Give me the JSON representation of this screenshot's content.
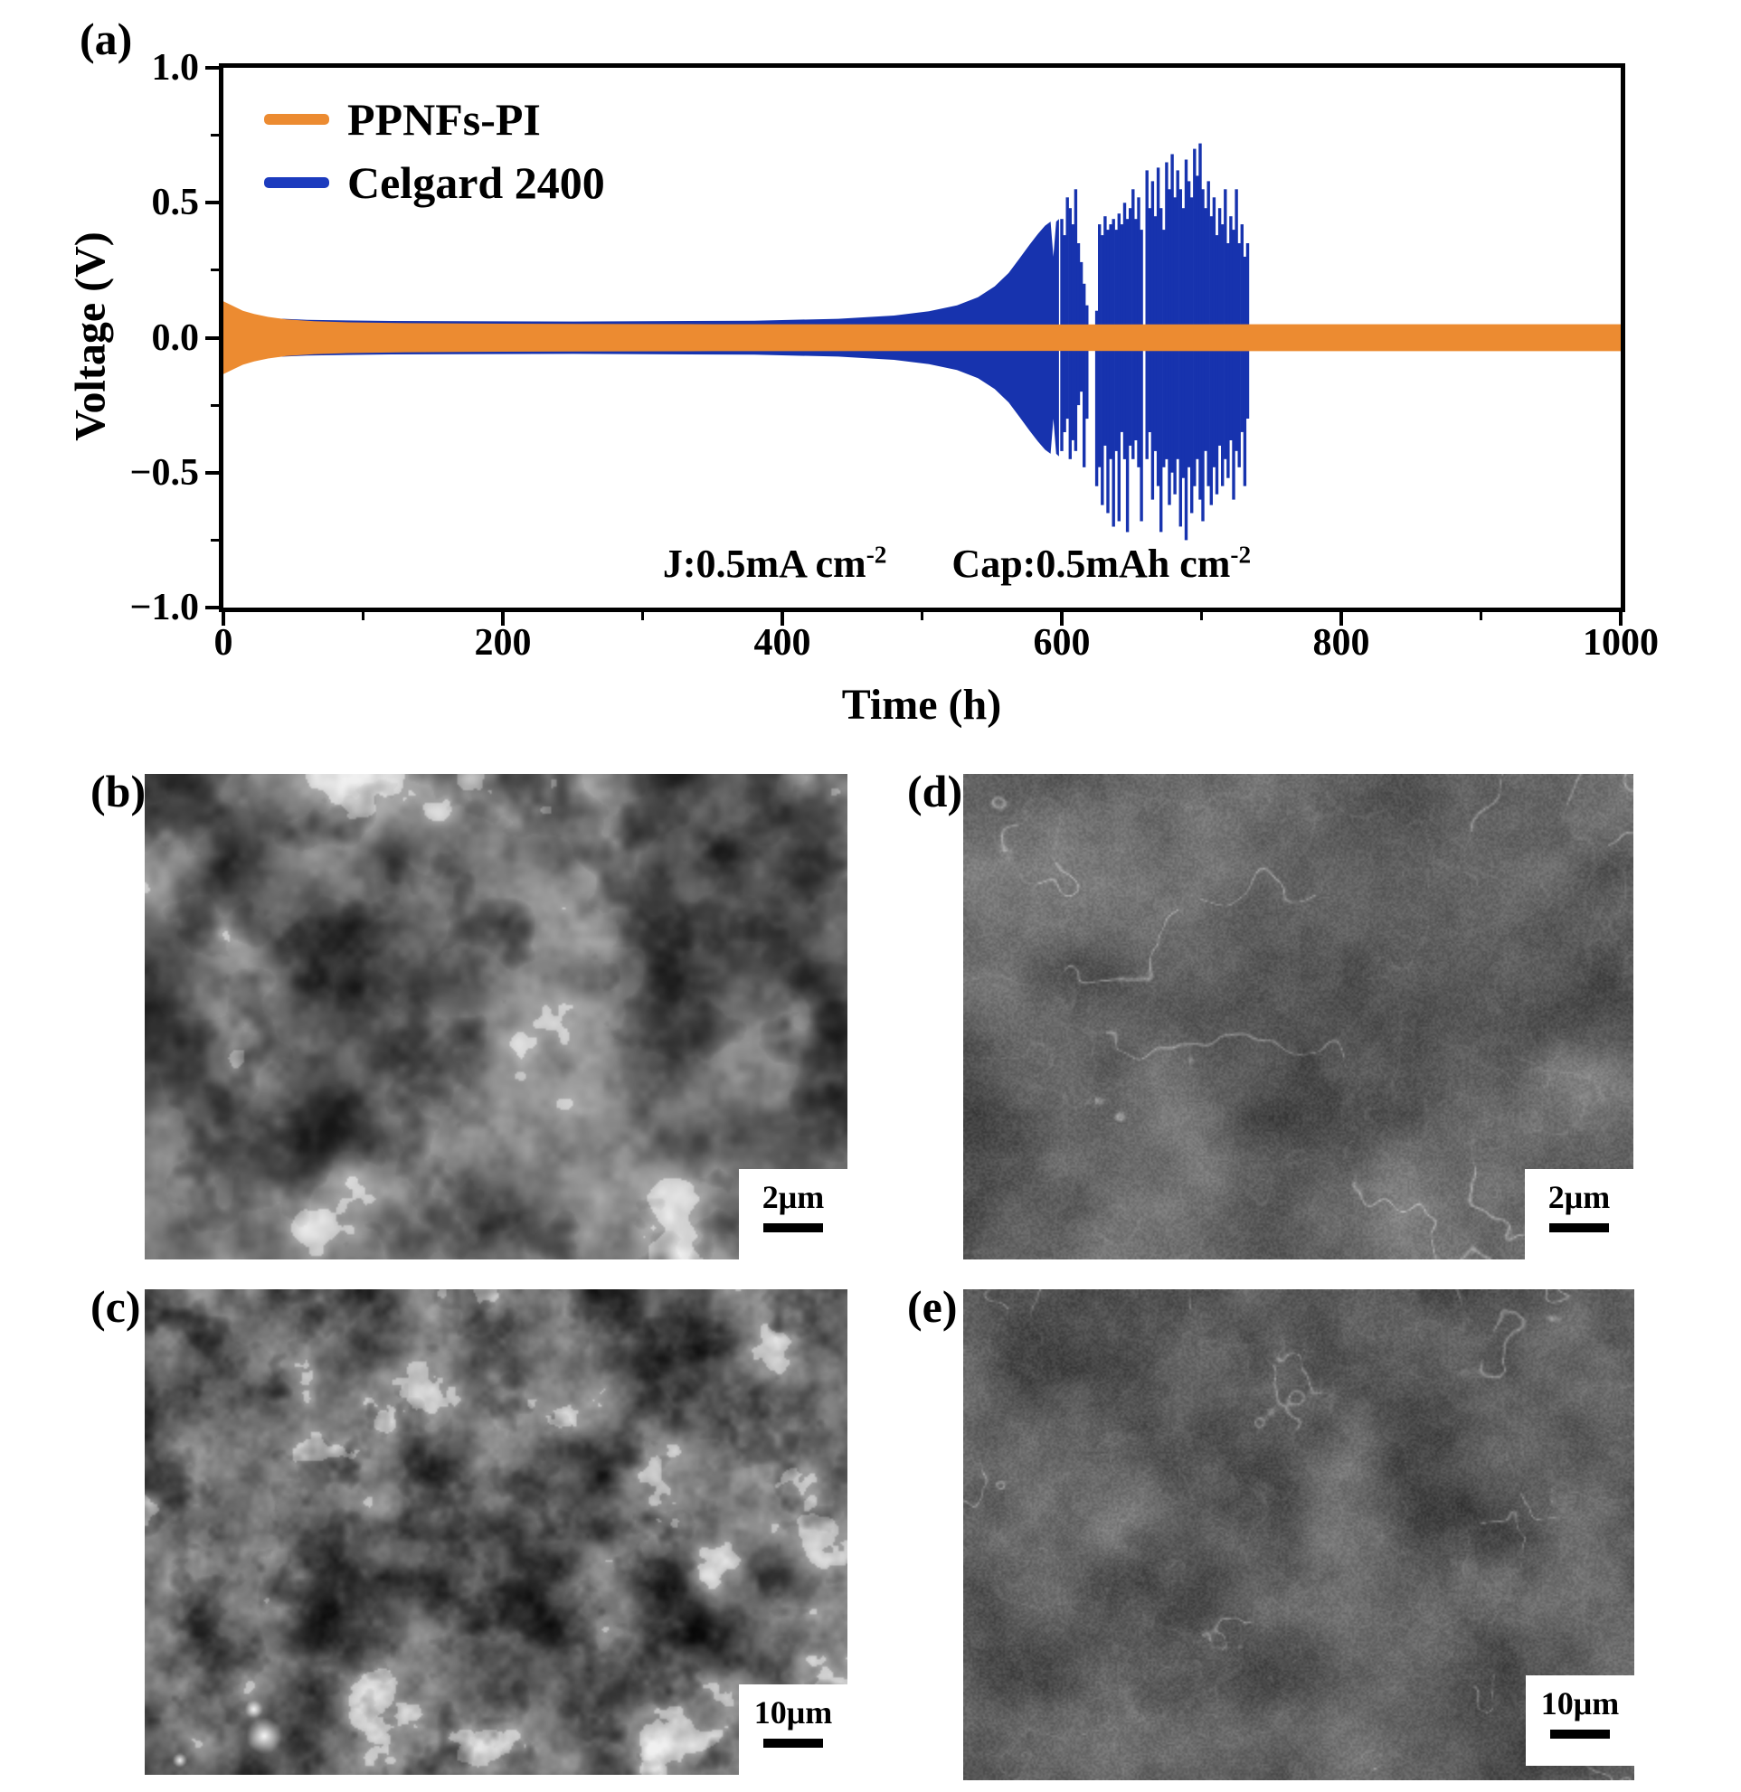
{
  "panel_a": {
    "label": "(a)",
    "xlabel": "Time (h)",
    "ylabel": "Voltage (V)",
    "legend": [
      {
        "label": "PPNFs-PI",
        "color": "#EC8B31"
      },
      {
        "label": "Celgard 2400",
        "color": "#1C3BBE"
      }
    ],
    "annotations": [
      {
        "base": "J:0.5mA cm",
        "sup": "-2"
      },
      {
        "base": "Cap:0.5mAh cm",
        "sup": "-2"
      }
    ]
  },
  "sem_panels": [
    {
      "id": "b",
      "label": "(b)",
      "scale_bar": "2μm",
      "texture": "rough-flaky-lithium-surface"
    },
    {
      "id": "d",
      "label": "(d)",
      "scale_bar": "2μm",
      "texture": "smooth-dense-lithium-surface"
    },
    {
      "id": "c",
      "label": "(c)",
      "scale_bar": "10μm",
      "texture": "rough-flaky-lithium-surface"
    },
    {
      "id": "e",
      "label": "(e)",
      "scale_bar": "10μm",
      "texture": "smooth-dense-lithium-surface"
    }
  ],
  "chart_data": {
    "type": "line",
    "title": "",
    "xlabel": "Time (h)",
    "ylabel": "Voltage (V)",
    "xlim": [
      0,
      1000
    ],
    "ylim": [
      -1.0,
      1.0
    ],
    "x_ticks": [
      0,
      200,
      400,
      600,
      800,
      1000
    ],
    "x_minor_ticks": [
      100,
      300,
      500,
      700,
      900
    ],
    "y_ticks": [
      1.0,
      0.5,
      0.0,
      -0.5,
      -1.0
    ],
    "y_minor_ticks": [
      0.75,
      0.25,
      -0.25,
      -0.75
    ],
    "grid": false,
    "legend_position": "top-left",
    "series": [
      {
        "name": "PPNFs-PI",
        "color": "#EC8B31",
        "style": "symmetric-envelope",
        "envelope": [
          [
            0,
            0.135
          ],
          [
            4,
            0.125
          ],
          [
            8,
            0.115
          ],
          [
            14,
            0.1
          ],
          [
            22,
            0.088
          ],
          [
            32,
            0.077
          ],
          [
            45,
            0.068
          ],
          [
            65,
            0.061
          ],
          [
            90,
            0.057
          ],
          [
            130,
            0.054
          ],
          [
            200,
            0.052
          ],
          [
            350,
            0.05
          ],
          [
            600,
            0.049
          ],
          [
            800,
            0.05
          ],
          [
            1000,
            0.05
          ]
        ]
      },
      {
        "name": "Celgard 2400",
        "color": "#1733AE",
        "style": "symmetric-envelope-with-spikes",
        "envelope": [
          [
            0,
            0.1
          ],
          [
            6,
            0.092
          ],
          [
            15,
            0.082
          ],
          [
            30,
            0.073
          ],
          [
            60,
            0.066
          ],
          [
            120,
            0.062
          ],
          [
            250,
            0.06
          ],
          [
            380,
            0.063
          ],
          [
            440,
            0.07
          ],
          [
            480,
            0.082
          ],
          [
            505,
            0.098
          ],
          [
            525,
            0.12
          ],
          [
            540,
            0.15
          ],
          [
            552,
            0.19
          ],
          [
            562,
            0.24
          ],
          [
            570,
            0.295
          ],
          [
            577,
            0.345
          ],
          [
            583,
            0.385
          ],
          [
            588,
            0.415
          ],
          [
            592,
            0.43
          ],
          [
            594,
            0.3
          ],
          [
            596,
            0.43
          ],
          [
            598,
            0.44
          ]
        ],
        "spikes": [
          [
            600,
            0.44,
            -0.42
          ],
          [
            602,
            0.38,
            -0.35
          ],
          [
            604,
            0.52,
            -0.3
          ],
          [
            606,
            0.48,
            -0.45
          ],
          [
            608,
            0.42,
            -0.38
          ],
          [
            610,
            0.55,
            -0.42
          ],
          [
            612,
            0.35,
            -0.25
          ],
          [
            614,
            0.28,
            -0.2
          ],
          [
            616,
            0.2,
            -0.48
          ],
          [
            618,
            0.12,
            -0.3
          ],
          [
            625,
            0.1,
            -0.55
          ],
          [
            627,
            0.42,
            -0.48
          ],
          [
            629,
            0.38,
            -0.62
          ],
          [
            631,
            0.45,
            -0.4
          ],
          [
            633,
            0.4,
            -0.65
          ],
          [
            635,
            0.42,
            -0.45
          ],
          [
            637,
            0.44,
            -0.7
          ],
          [
            639,
            0.4,
            -0.42
          ],
          [
            641,
            0.46,
            -0.68
          ],
          [
            643,
            0.42,
            -0.35
          ],
          [
            645,
            0.5,
            -0.45
          ],
          [
            647,
            0.44,
            -0.72
          ],
          [
            649,
            0.48,
            -0.4
          ],
          [
            651,
            0.55,
            -0.45
          ],
          [
            653,
            0.44,
            -0.38
          ],
          [
            655,
            0.52,
            -0.48
          ],
          [
            657,
            0.4,
            -0.68
          ],
          [
            661,
            0.62,
            -0.45
          ],
          [
            663,
            0.48,
            -0.35
          ],
          [
            665,
            0.58,
            -0.6
          ],
          [
            667,
            0.45,
            -0.42
          ],
          [
            669,
            0.63,
            -0.55
          ],
          [
            671,
            0.48,
            -0.72
          ],
          [
            673,
            0.4,
            -0.48
          ],
          [
            675,
            0.65,
            -0.45
          ],
          [
            677,
            0.55,
            -0.62
          ],
          [
            679,
            0.68,
            -0.5
          ],
          [
            681,
            0.52,
            -0.58
          ],
          [
            683,
            0.62,
            -0.45
          ],
          [
            685,
            0.55,
            -0.7
          ],
          [
            687,
            0.48,
            -0.52
          ],
          [
            689,
            0.66,
            -0.75
          ],
          [
            691,
            0.58,
            -0.48
          ],
          [
            693,
            0.52,
            -0.65
          ],
          [
            695,
            0.7,
            -0.55
          ],
          [
            697,
            0.6,
            -0.45
          ],
          [
            699,
            0.72,
            -0.6
          ],
          [
            701,
            0.55,
            -0.68
          ],
          [
            703,
            0.48,
            -0.42
          ],
          [
            705,
            0.58,
            -0.55
          ],
          [
            707,
            0.45,
            -0.62
          ],
          [
            709,
            0.52,
            -0.48
          ],
          [
            711,
            0.38,
            -0.58
          ],
          [
            713,
            0.48,
            -0.4
          ],
          [
            715,
            0.42,
            -0.55
          ],
          [
            717,
            0.55,
            -0.45
          ],
          [
            719,
            0.35,
            -0.52
          ],
          [
            721,
            0.45,
            -0.38
          ],
          [
            723,
            0.4,
            -0.6
          ],
          [
            725,
            0.55,
            -0.42
          ],
          [
            727,
            0.35,
            -0.48
          ],
          [
            729,
            0.42,
            -0.35
          ],
          [
            731,
            0.3,
            -0.55
          ],
          [
            733,
            0.35,
            -0.3
          ]
        ],
        "end_time": 733
      }
    ]
  }
}
